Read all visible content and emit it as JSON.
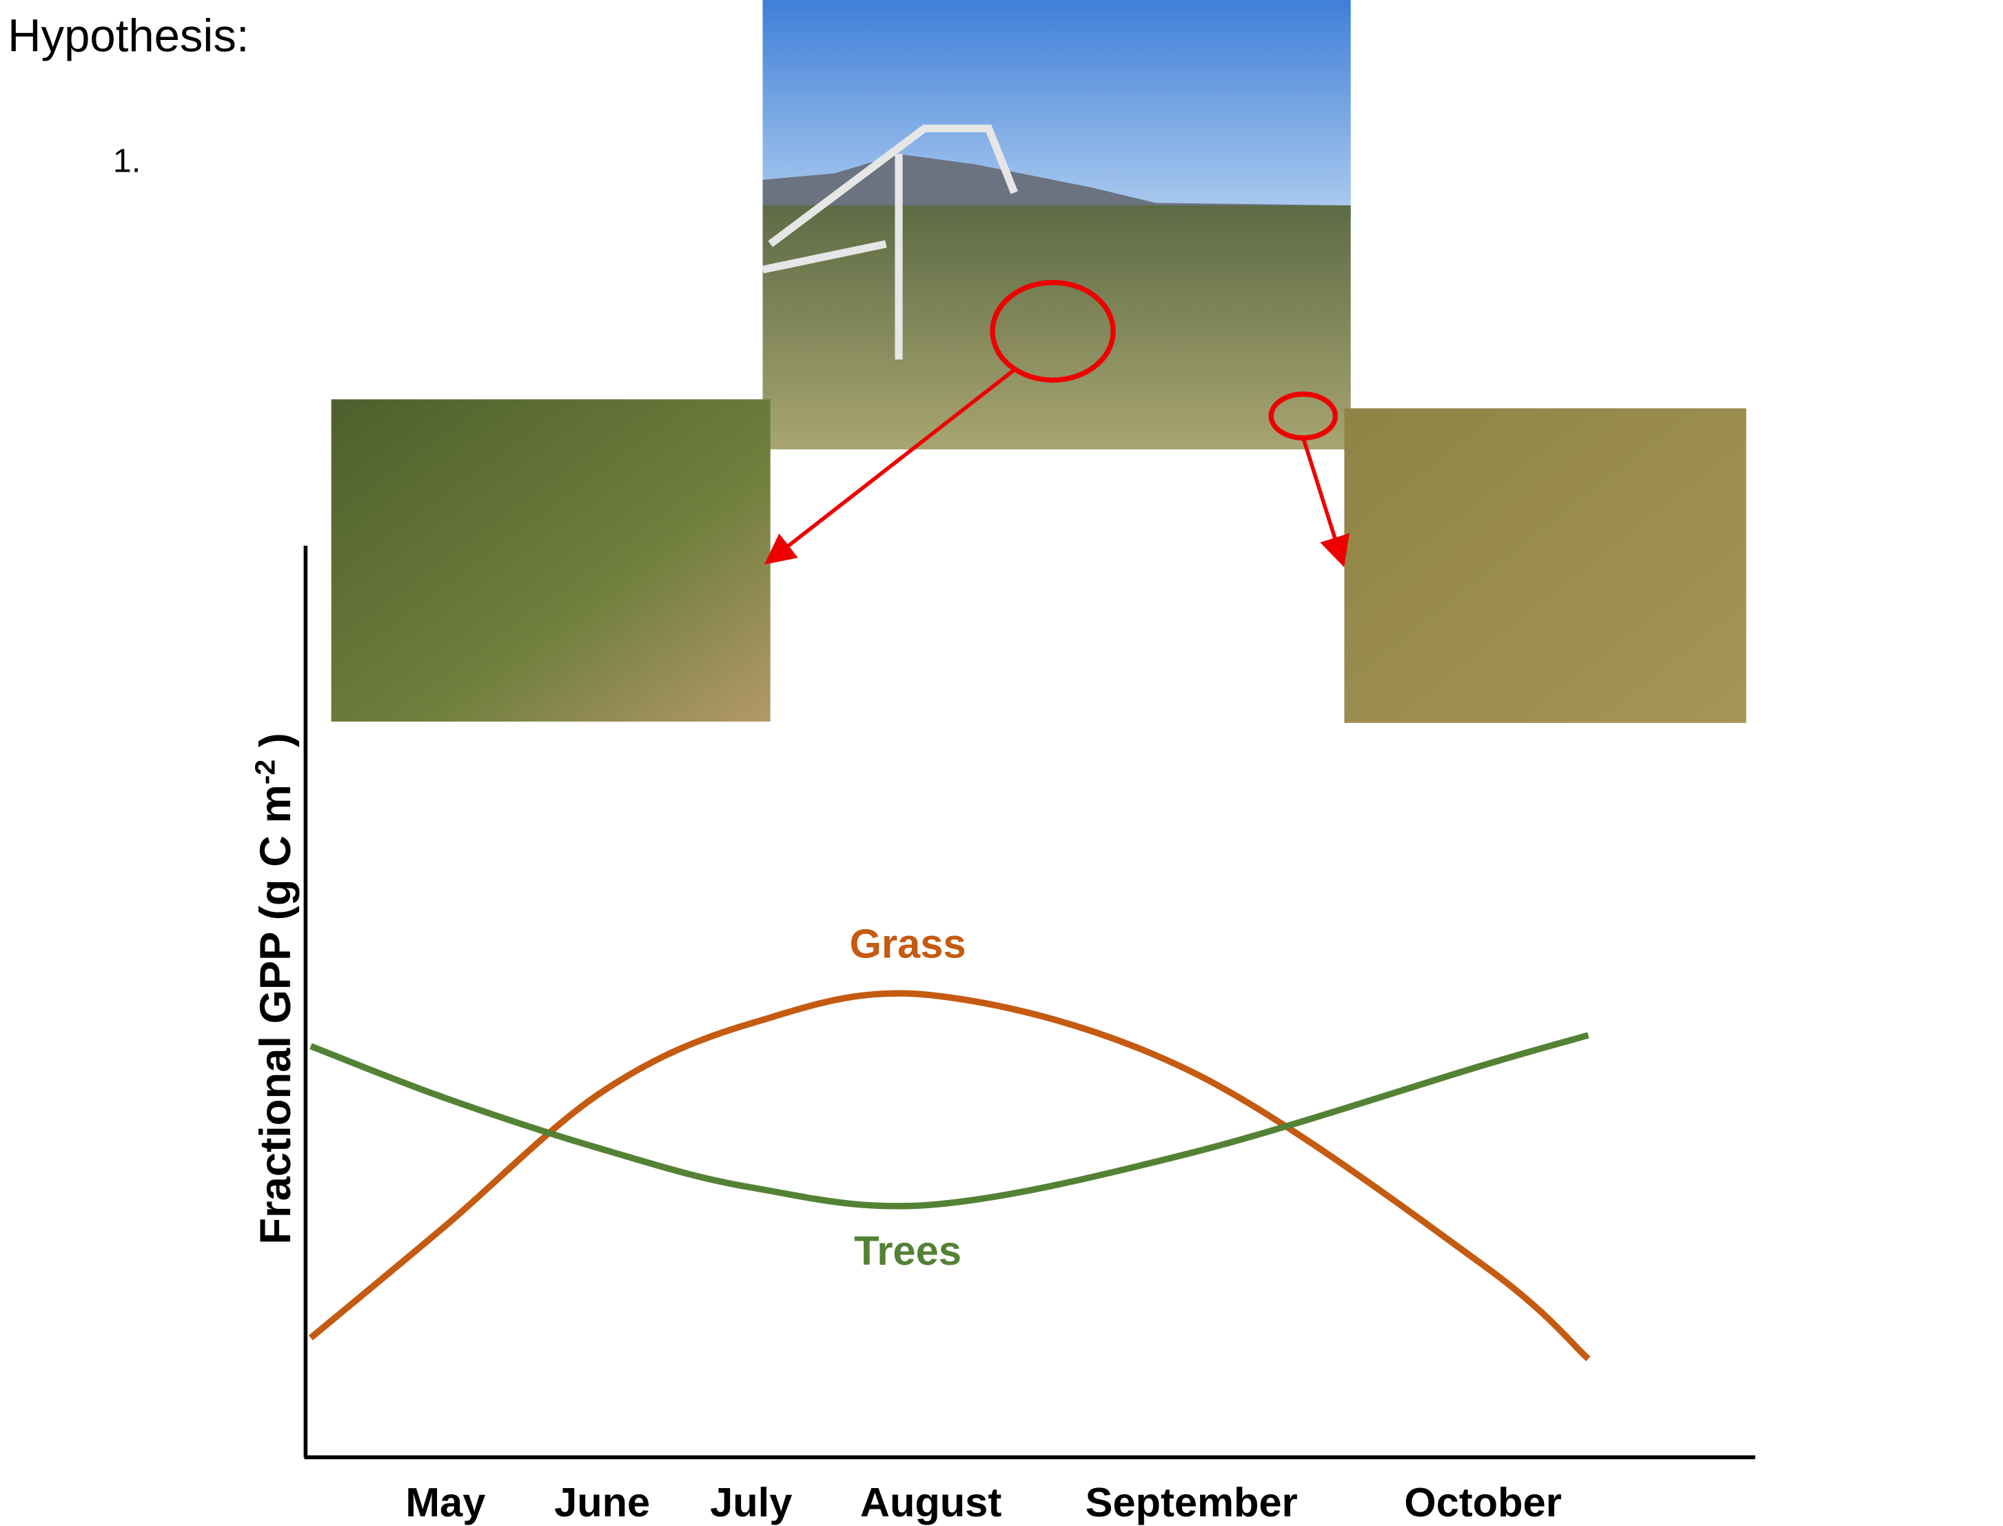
{
  "slide": {
    "heading": "Hypothesis:",
    "list_marker": "1."
  },
  "chart_data": {
    "type": "line",
    "ylabel": [
      "Fractional GPP (g C m",
      "-2",
      " )"
    ],
    "categories": [
      null,
      "May",
      "June",
      "July",
      "August",
      "September",
      "October",
      null
    ],
    "ylim": [
      0,
      100
    ],
    "series": [
      {
        "name": "Grass",
        "color": "#c55a11",
        "values": [
          13.1,
          25.4,
          40.1,
          47.6,
          50.7,
          42.3,
          21.1,
          10.8
        ]
      },
      {
        "name": "Trees",
        "color": "#548235",
        "values": [
          45.1,
          39.4,
          33.8,
          29.6,
          27.7,
          33.4,
          43.0,
          46.3
        ]
      }
    ]
  }
}
